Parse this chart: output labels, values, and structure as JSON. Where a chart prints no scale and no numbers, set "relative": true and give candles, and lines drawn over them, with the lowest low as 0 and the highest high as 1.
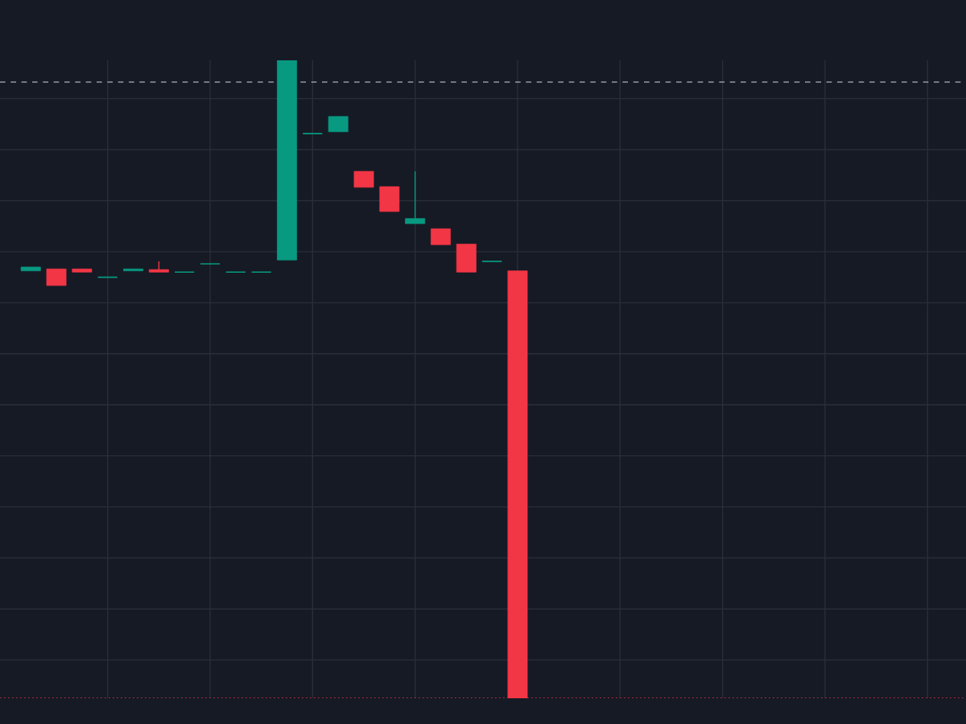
{
  "chart_data": {
    "type": "candlestick",
    "relative": true,
    "categories": [
      null,
      null,
      null,
      null,
      null,
      null,
      null,
      null,
      null,
      null,
      null,
      null,
      null,
      null,
      null,
      null,
      null,
      null,
      null,
      null
    ],
    "ohlc": [
      [
        0.67,
        0.676,
        0.67,
        0.676
      ],
      [
        0.673,
        0.673,
        0.647,
        0.647
      ],
      [
        0.673,
        0.673,
        0.668,
        0.668
      ],
      [
        0.66,
        0.66,
        0.66,
        0.66
      ],
      [
        0.67,
        0.673,
        0.67,
        0.673
      ],
      [
        0.672,
        0.685,
        0.668,
        0.668
      ],
      [
        0.668,
        0.668,
        0.668,
        0.668
      ],
      [
        0.681,
        0.681,
        0.681,
        0.681
      ],
      [
        0.668,
        0.668,
        0.668,
        0.668
      ],
      [
        0.668,
        0.668,
        0.668,
        0.668
      ],
      [
        0.687,
        1.0,
        0.687,
        1.0
      ],
      [
        0.885,
        0.885,
        0.885,
        0.885
      ],
      [
        0.888,
        0.912,
        0.888,
        0.912
      ],
      [
        0.826,
        0.826,
        0.801,
        0.801
      ],
      [
        0.802,
        0.802,
        0.763,
        0.763
      ],
      [
        0.744,
        0.826,
        0.744,
        0.752
      ],
      [
        0.736,
        0.736,
        0.711,
        0.711
      ],
      [
        0.712,
        0.712,
        0.668,
        0.668
      ],
      [
        0.685,
        0.685,
        0.685,
        0.685
      ],
      [
        0.67,
        0.67,
        0.0,
        0.0
      ]
    ],
    "colors": [
      "#089981",
      "#f23645",
      "#f23645",
      "#089981",
      "#089981",
      "#f23645",
      "#089981",
      "#089981",
      "#089981",
      "#089981",
      "#089981",
      "#089981",
      "#089981",
      "#f23645",
      "#f23645",
      "#089981",
      "#f23645",
      "#f23645",
      "#089981",
      "#f23645"
    ],
    "ref_lines": [
      {
        "axis": "y",
        "value": 0.966,
        "color": "#9598a1",
        "line_style": "dashed"
      },
      {
        "axis": "y",
        "value": 0.0,
        "color": "#f23645",
        "line_style": "dotted"
      }
    ],
    "grid": true
  }
}
